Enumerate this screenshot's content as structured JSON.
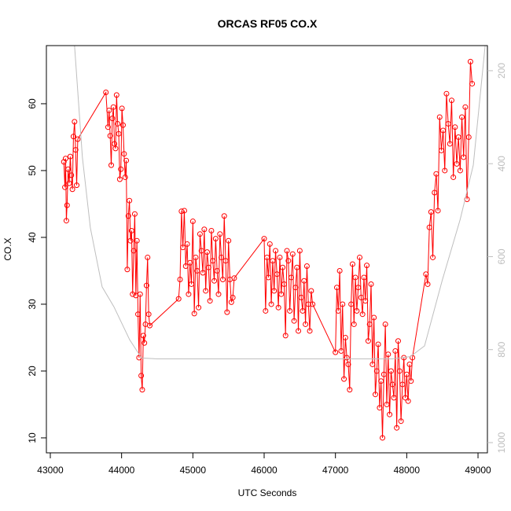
{
  "chart_data": {
    "type": "line",
    "title": "ORCAS RF05 CO.X",
    "xlabel": "UTC Seconds",
    "ylabel": "CO.X",
    "xlim": [
      42945,
      49132
    ],
    "ylim": [
      7.76,
      68.7
    ],
    "y2lim": [
      1022,
      146
    ],
    "xticks": [
      43000,
      44000,
      45000,
      46000,
      47000,
      48000,
      49000
    ],
    "yticks": [
      10,
      20,
      30,
      40,
      50,
      60
    ],
    "y2ticks": [
      200,
      400,
      600,
      800,
      1000
    ],
    "series": [
      {
        "color": "#ff0000",
        "markers": true,
        "x": [
          43190,
          43205,
          43215,
          43225,
          43235,
          43250,
          43265,
          43280,
          43295,
          43310,
          43325,
          43340,
          43355,
          43370,
          43385,
          43780,
          43810,
          43825,
          43840,
          43855,
          43870,
          43885,
          43900,
          43915,
          43930,
          43945,
          43960,
          43975,
          43990,
          44005,
          44020,
          44035,
          44050,
          44065,
          44080,
          44095,
          44110,
          44125,
          44140,
          44155,
          44170,
          44185,
          44200,
          44215,
          44230,
          44245,
          44260,
          44275,
          44290,
          44305,
          44320,
          44335,
          44350,
          44365,
          44380,
          44395,
          44800,
          44820,
          44840,
          44860,
          44880,
          44900,
          44920,
          44940,
          44960,
          44980,
          45000,
          45020,
          45040,
          45060,
          45080,
          45100,
          45120,
          45140,
          45160,
          45180,
          45200,
          45220,
          45240,
          45260,
          45280,
          45300,
          45320,
          45340,
          45360,
          45380,
          45400,
          45420,
          45440,
          45460,
          45480,
          45500,
          45520,
          45540,
          45560,
          45580,
          46000,
          46020,
          46040,
          46060,
          46080,
          46100,
          46120,
          46140,
          46160,
          46180,
          46200,
          46220,
          46240,
          46260,
          46280,
          46300,
          46320,
          46340,
          46360,
          46380,
          46400,
          46420,
          46440,
          46460,
          46480,
          46500,
          46520,
          46540,
          46560,
          46580,
          46600,
          46620,
          46640,
          46660,
          46680,
          47000,
          47020,
          47040,
          47060,
          47080,
          47100,
          47120,
          47140,
          47160,
          47180,
          47200,
          47220,
          47240,
          47260,
          47280,
          47300,
          47320,
          47340,
          47360,
          47380,
          47400,
          47420,
          47440,
          47460,
          47480,
          47500,
          47520,
          47540,
          47560,
          47580,
          47600,
          47620,
          47640,
          47660,
          47680,
          47700,
          47720,
          47740,
          47760,
          47780,
          47800,
          47820,
          47840,
          47860,
          47880,
          47900,
          47920,
          47940,
          47960,
          47980,
          48000,
          48020,
          48040,
          48060,
          48080,
          48270,
          48294,
          48318,
          48342,
          48366,
          48390,
          48414,
          48438,
          48462,
          48486,
          48510,
          48534,
          48558,
          48582,
          48606,
          48630,
          48654,
          48678,
          48702,
          48726,
          48750,
          48774,
          48798,
          48822,
          48846,
          48870,
          48894,
          48918
        ],
        "values": [
          51.3,
          47.5,
          51.8,
          42.5,
          44.8,
          50.2,
          48.1,
          52.1,
          49.3,
          47.2,
          55.1,
          57.3,
          53.1,
          47.8,
          54.7,
          61.7,
          56.5,
          59,
          55.2,
          50.8,
          57.8,
          59.5,
          54,
          53.3,
          61.3,
          57,
          55.5,
          48.7,
          50.2,
          59.3,
          56.8,
          52.5,
          49,
          51.5,
          35.2,
          43.2,
          45.5,
          39.5,
          41,
          31.5,
          38,
          43.5,
          31.3,
          39.5,
          28.5,
          22,
          31.5,
          19.3,
          17.2,
          25.3,
          24.2,
          27,
          32.8,
          37,
          28.5,
          26.8,
          30.8,
          33.7,
          43.9,
          38.5,
          44,
          35.7,
          39,
          31.5,
          36.2,
          33,
          42.4,
          28.6,
          37,
          35,
          29.5,
          40.5,
          38,
          34.7,
          41.2,
          32,
          37.8,
          35.5,
          30.5,
          41,
          36.5,
          33.5,
          39.8,
          35,
          31.5,
          40.5,
          37,
          33.7,
          43.2,
          36.5,
          28.8,
          39.5,
          33.7,
          30.3,
          31,
          33.9,
          39.8,
          29,
          37,
          34,
          39,
          30,
          36.5,
          32,
          38,
          34.5,
          29.5,
          37,
          31.5,
          35.5,
          33,
          25.3,
          38,
          36.5,
          29,
          34,
          37.5,
          27.5,
          32.5,
          35.5,
          26,
          38,
          31,
          29,
          33.5,
          27,
          35.7,
          30,
          26,
          32,
          30,
          22.8,
          32.5,
          29,
          35,
          23,
          30,
          18.8,
          25,
          22,
          21,
          17.2,
          30,
          36,
          27,
          34,
          29,
          32.5,
          37,
          31,
          28.5,
          34,
          30.5,
          35.8,
          24.5,
          27,
          33,
          21,
          28,
          16.5,
          20,
          24,
          14.5,
          18.5,
          10,
          19.5,
          27,
          15,
          22.5,
          13.5,
          20,
          18,
          16,
          23,
          11.5,
          24.5,
          20,
          12.5,
          18,
          22,
          16,
          19.5,
          15.5,
          21,
          18.5,
          22,
          34.5,
          33,
          41.5,
          43.8,
          37,
          46.7,
          49.5,
          44,
          58,
          53,
          56,
          50,
          61.5,
          57,
          54,
          60.5,
          49,
          56.5,
          51,
          55,
          50,
          58,
          52,
          59.5,
          45.7,
          55,
          66.3,
          63
        ]
      },
      {
        "color": "#bebebe",
        "axis": "y2",
        "markers": false,
        "x": [
          43340,
          43450,
          43562,
          43727,
          43893,
          44114,
          44280,
          44500,
          45000,
          46000,
          47000,
          47800,
          48050,
          48250,
          48500,
          48750,
          48934,
          49100
        ],
        "values": [
          146,
          386,
          538,
          665,
          708,
          779,
          818,
          820,
          820,
          820,
          820,
          820,
          815,
          792,
          650,
          520,
          403,
          146
        ]
      }
    ]
  }
}
